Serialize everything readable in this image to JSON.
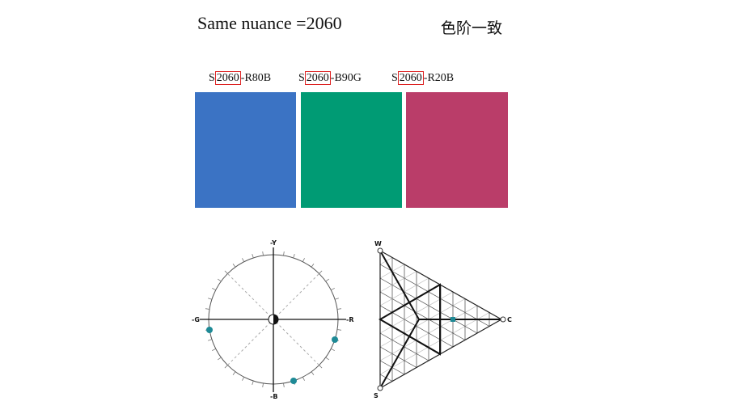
{
  "title": "Same nuance =2060",
  "title_cn": "色阶一致",
  "swatches": [
    {
      "prefix": "S",
      "nuance": "2060",
      "hue": "-R80B",
      "color": "#3B73C4"
    },
    {
      "prefix": "S",
      "nuance": "2060",
      "hue": "-B90G",
      "color": "#009B74"
    },
    {
      "prefix": "S",
      "nuance": "2060",
      "hue": "-R20B",
      "color": "#BA3D69"
    }
  ],
  "hue_circle": {
    "labels": {
      "top": "-Y",
      "right": "-R",
      "bottom": "-B",
      "left": "-G"
    },
    "marker_color": "#1E8A96"
  },
  "triangle": {
    "labels": {
      "white": "W",
      "black": "S",
      "chromatic": "C"
    },
    "marker_color": "#1E8A96"
  }
}
